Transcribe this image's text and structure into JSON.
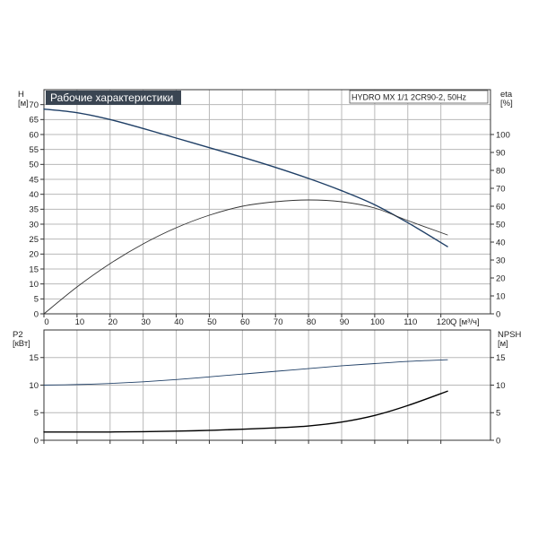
{
  "chart_data": [
    {
      "type": "line",
      "title": "Рабочие характеристики",
      "subtitle": "HYDRO MX 1/1 2CR90-2, 50Hz",
      "xlabel": "Q [м³/ч]",
      "ylabel": "H\n[м]",
      "y2label": "eta\n[%]",
      "xlim": [
        0,
        135
      ],
      "ylim": [
        0,
        75
      ],
      "y2lim": [
        0,
        125
      ],
      "xticks": [
        0,
        10,
        20,
        30,
        40,
        50,
        60,
        70,
        80,
        90,
        100,
        110,
        120
      ],
      "yticks": [
        0,
        5,
        10,
        15,
        20,
        25,
        30,
        35,
        40,
        45,
        50,
        55,
        60,
        65,
        70
      ],
      "y2ticks": [
        0,
        10,
        20,
        30,
        40,
        50,
        60,
        70,
        80,
        90,
        100
      ],
      "grid": true,
      "series": [
        {
          "name": "",
          "axis": "left",
          "color": "#1f3f66",
          "x": [
            0,
            10,
            20,
            30,
            40,
            50,
            60,
            70,
            80,
            90,
            100,
            110,
            122
          ],
          "y": [
            68.5,
            67.3,
            65.0,
            62.0,
            58.8,
            55.6,
            52.4,
            49.0,
            45.3,
            41.2,
            36.5,
            30.5,
            22.5
          ]
        },
        {
          "name": "",
          "axis": "right",
          "color": "#333333",
          "x": [
            0,
            10,
            20,
            30,
            40,
            50,
            60,
            70,
            80,
            90,
            100,
            110,
            122
          ],
          "y": [
            0,
            15,
            28,
            39,
            48,
            55,
            60,
            62.5,
            63.5,
            62.5,
            59,
            52,
            44
          ]
        }
      ]
    },
    {
      "type": "line",
      "ylabel": "P2\n[кВт]",
      "y2label": "NPSH\n[м]",
      "xlim": [
        0,
        135
      ],
      "ylim": [
        0,
        20
      ],
      "y2lim": [
        0,
        20
      ],
      "xticks": [
        0,
        10,
        20,
        30,
        40,
        50,
        60,
        70,
        80,
        90,
        100,
        110,
        120
      ],
      "yticks": [
        0,
        5,
        10,
        15
      ],
      "y2ticks": [
        0,
        5,
        10,
        15
      ],
      "grid": true,
      "series": [
        {
          "name": "",
          "axis": "left",
          "color": "#1f3f66",
          "x": [
            0,
            10,
            20,
            30,
            40,
            50,
            60,
            70,
            80,
            90,
            100,
            110,
            122
          ],
          "y": [
            10.0,
            10.1,
            10.3,
            10.6,
            11.0,
            11.5,
            12.0,
            12.5,
            13.0,
            13.5,
            13.9,
            14.3,
            14.6
          ]
        },
        {
          "name": "",
          "axis": "right",
          "color": "#000000",
          "x": [
            0,
            10,
            20,
            30,
            40,
            50,
            60,
            70,
            80,
            90,
            100,
            110,
            122
          ],
          "y": [
            1.5,
            1.5,
            1.5,
            1.55,
            1.65,
            1.8,
            2.0,
            2.25,
            2.6,
            3.3,
            4.5,
            6.3,
            8.9
          ]
        }
      ]
    }
  ]
}
